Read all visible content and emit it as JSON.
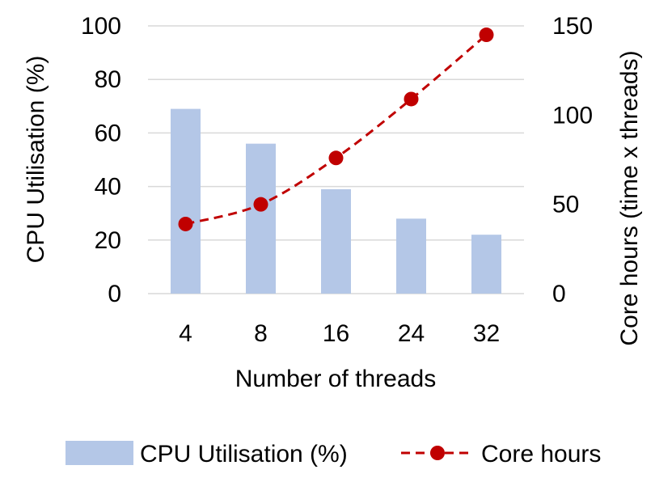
{
  "chart_data": {
    "type": "bar",
    "categories": [
      "4",
      "8",
      "16",
      "24",
      "32"
    ],
    "xlabel": "Number of threads",
    "ylabel": "CPU Utilisation (%)",
    "y2label": "Core hours (time x threads)",
    "ylim": [
      0,
      100
    ],
    "y2lim": [
      0,
      150
    ],
    "yticks": [
      "0",
      "20",
      "40",
      "60",
      "80",
      "100"
    ],
    "y2ticks": [
      "0",
      "50",
      "100",
      "150"
    ],
    "grid": true,
    "legend_position": "bottom",
    "series": [
      {
        "name": "CPU Utilisation (%)",
        "type": "bar",
        "axis": "left",
        "color": "#b4c7e7",
        "values": [
          69,
          56,
          39,
          28,
          22
        ]
      },
      {
        "name": "Core hours",
        "type": "line",
        "axis": "right",
        "color": "#c00000",
        "line_style": "dashed",
        "marker": "circle",
        "values": [
          39,
          50,
          76,
          109,
          145
        ]
      }
    ]
  }
}
